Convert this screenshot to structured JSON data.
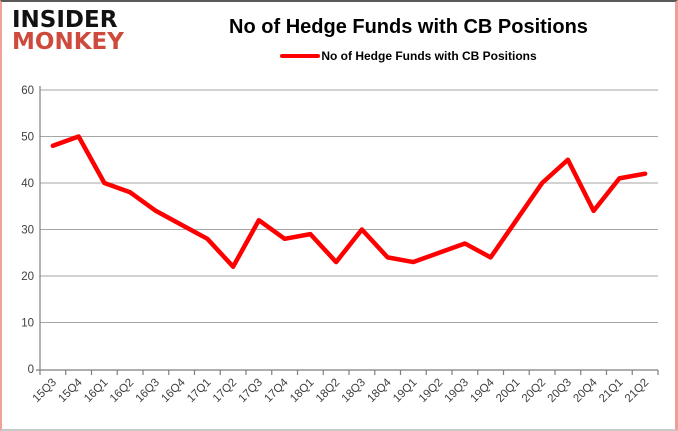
{
  "logo": {
    "line1": "INSIDER",
    "line2": "MONKEY"
  },
  "header": {
    "title": "No of Hedge Funds with CB Positions"
  },
  "legend": {
    "label": "No of Hedge Funds with CB Positions",
    "swatch_color": "#ff0000"
  },
  "colors": {
    "series_line": "#ff0000",
    "gridline": "#a6a6a6",
    "axis_line": "#7f7f7f",
    "tick_text": "#3f3f3f",
    "logo_black": "#121212",
    "logo_red": "#ce4a3c"
  },
  "chart_data": {
    "type": "line",
    "title": "No of Hedge Funds with CB Positions",
    "xlabel": "",
    "ylabel": "",
    "categories": [
      "15Q3",
      "15Q4",
      "16Q1",
      "16Q2",
      "16Q3",
      "16Q4",
      "17Q1",
      "17Q2",
      "17Q3",
      "17Q4",
      "18Q1",
      "18Q2",
      "18Q3",
      "18Q4",
      "19Q1",
      "19Q2",
      "19Q3",
      "19Q4",
      "20Q1",
      "20Q2",
      "20Q3",
      "20Q4",
      "21Q1",
      "21Q2"
    ],
    "series": [
      {
        "name": "No of Hedge Funds with CB Positions",
        "color": "#ff0000",
        "values": [
          48,
          50,
          40,
          38,
          34,
          31,
          28,
          22,
          32,
          28,
          29,
          23,
          30,
          24,
          23,
          25,
          27,
          24,
          32,
          40,
          45,
          34,
          41,
          42
        ]
      }
    ],
    "ylim": [
      0,
      60
    ],
    "yticks": [
      0,
      10,
      20,
      30,
      40,
      50,
      60
    ],
    "grid": true,
    "legend_position": "top-center"
  }
}
